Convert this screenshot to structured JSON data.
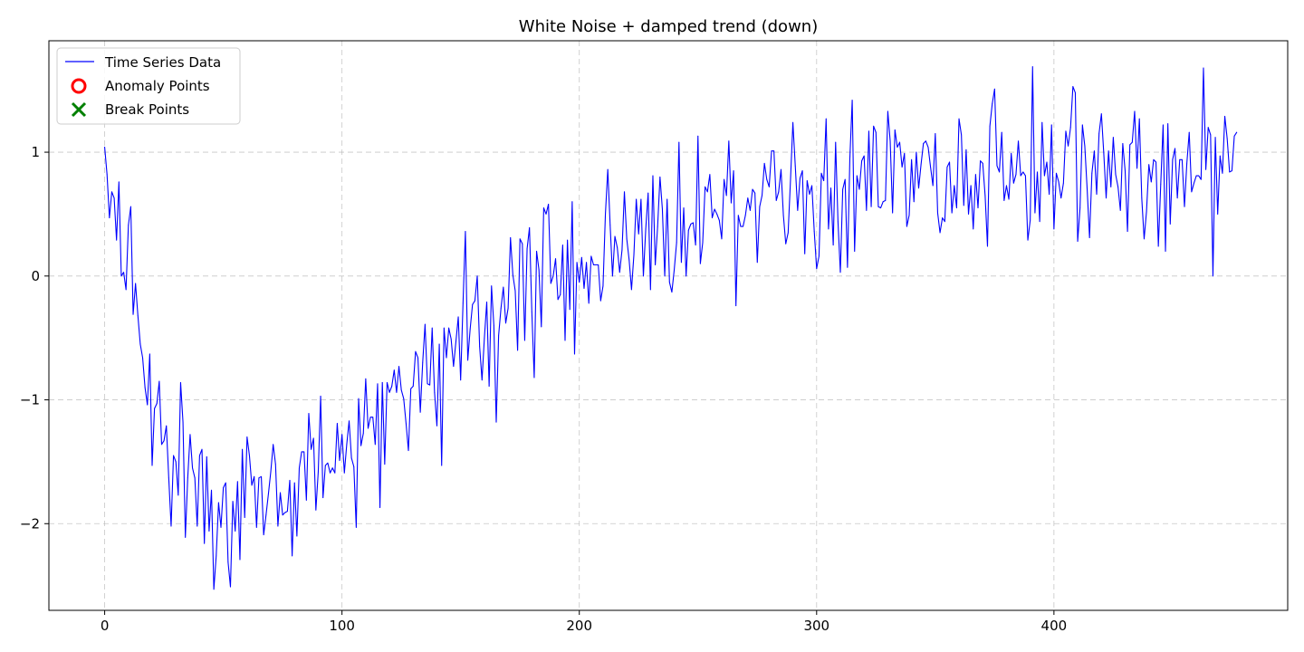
{
  "chart_data": {
    "type": "line",
    "title": "White Noise + damped trend (down)",
    "xlabel": "",
    "ylabel": "",
    "xlim": [
      -23.5,
      498.5
    ],
    "ylim": [
      -2.7,
      1.9
    ],
    "grid": true,
    "legend_position": "top-left",
    "x_ticks": [
      0,
      100,
      200,
      300,
      400
    ],
    "y_ticks": [
      -2,
      -1,
      0,
      1
    ],
    "x_tick_labels": [
      "0",
      "100",
      "200",
      "300",
      "400"
    ],
    "y_tick_labels": [
      "−2",
      "−1",
      "0",
      "1"
    ],
    "legend": [
      {
        "label": "Time Series Data",
        "kind": "line",
        "color": "#0000ff"
      },
      {
        "label": "Anomaly Points",
        "kind": "circle",
        "color": "#ff0000"
      },
      {
        "label": "Break Points",
        "kind": "x",
        "color": "#008000"
      }
    ],
    "series": [
      {
        "name": "Time Series Data",
        "color": "#0000ff",
        "x_start": 0,
        "x_step": 1,
        "values": [
          1.04,
          0.82,
          0.47,
          0.68,
          0.63,
          0.29,
          0.76,
          0.0,
          0.03,
          -0.11,
          0.41,
          0.56,
          -0.31,
          -0.06,
          -0.32,
          -0.55,
          -0.66,
          -0.9,
          -1.04,
          -0.63,
          -1.53,
          -1.07,
          -1.03,
          -0.85,
          -1.36,
          -1.33,
          -1.21,
          -1.63,
          -2.02,
          -1.45,
          -1.5,
          -1.77,
          -0.86,
          -1.18,
          -2.11,
          -1.63,
          -1.28,
          -1.55,
          -1.63,
          -2.02,
          -1.45,
          -1.4,
          -2.16,
          -1.46,
          -2.06,
          -1.73,
          -2.53,
          -2.26,
          -1.83,
          -2.03,
          -1.71,
          -1.67,
          -2.31,
          -2.51,
          -1.82,
          -2.06,
          -1.66,
          -2.29,
          -1.4,
          -1.95,
          -1.3,
          -1.45,
          -1.69,
          -1.62,
          -2.03,
          -1.63,
          -1.62,
          -2.09,
          -1.93,
          -1.76,
          -1.58,
          -1.36,
          -1.52,
          -2.02,
          -1.75,
          -1.93,
          -1.91,
          -1.9,
          -1.65,
          -2.26,
          -1.67,
          -2.1,
          -1.55,
          -1.42,
          -1.42,
          -1.81,
          -1.11,
          -1.4,
          -1.31,
          -1.89,
          -1.58,
          -0.97,
          -1.79,
          -1.53,
          -1.51,
          -1.59,
          -1.55,
          -1.59,
          -1.19,
          -1.49,
          -1.28,
          -1.59,
          -1.36,
          -1.17,
          -1.47,
          -1.54,
          -2.03,
          -0.99,
          -1.37,
          -1.27,
          -0.83,
          -1.23,
          -1.14,
          -1.14,
          -1.36,
          -0.87,
          -1.87,
          -0.86,
          -1.52,
          -0.86,
          -0.94,
          -0.89,
          -0.76,
          -0.94,
          -0.73,
          -0.92,
          -0.99,
          -1.19,
          -1.41,
          -0.91,
          -0.89,
          -0.61,
          -0.66,
          -1.1,
          -0.7,
          -0.39,
          -0.87,
          -0.88,
          -0.42,
          -0.94,
          -1.21,
          -0.55,
          -1.53,
          -0.42,
          -0.66,
          -0.42,
          -0.51,
          -0.73,
          -0.53,
          -0.33,
          -0.84,
          -0.22,
          0.36,
          -0.68,
          -0.43,
          -0.23,
          -0.2,
          0.0,
          -0.57,
          -0.84,
          -0.5,
          -0.21,
          -0.89,
          -0.08,
          -0.4,
          -1.18,
          -0.48,
          -0.26,
          -0.09,
          -0.38,
          -0.26,
          0.31,
          0.01,
          -0.12,
          -0.6,
          0.3,
          0.26,
          -0.52,
          0.22,
          0.39,
          -0.29,
          -0.82,
          0.2,
          0.05,
          -0.41,
          0.55,
          0.5,
          0.58,
          -0.06,
          0.0,
          0.14,
          -0.19,
          -0.15,
          0.25,
          -0.52,
          0.29,
          -0.27,
          0.6,
          -0.63,
          0.11,
          -0.05,
          0.15,
          -0.1,
          0.11,
          -0.22,
          0.16,
          0.09,
          0.09,
          0.09,
          -0.2,
          -0.08,
          0.5,
          0.86,
          0.41,
          0.0,
          0.32,
          0.23,
          0.03,
          0.21,
          0.68,
          0.3,
          0.13,
          -0.11,
          0.17,
          0.62,
          0.34,
          0.62,
          0.0,
          0.38,
          0.67,
          -0.11,
          0.81,
          0.09,
          0.4,
          0.8,
          0.54,
          0.0,
          0.62,
          -0.05,
          -0.13,
          0.05,
          0.27,
          1.08,
          0.11,
          0.55,
          0.0,
          0.37,
          0.42,
          0.43,
          0.25,
          1.13,
          0.1,
          0.27,
          0.72,
          0.68,
          0.82,
          0.47,
          0.54,
          0.5,
          0.45,
          0.3,
          0.78,
          0.65,
          1.09,
          0.59,
          0.85,
          -0.24,
          0.49,
          0.4,
          0.4,
          0.49,
          0.63,
          0.53,
          0.7,
          0.67,
          0.11,
          0.56,
          0.65,
          0.91,
          0.78,
          0.72,
          1.01,
          1.01,
          0.61,
          0.68,
          0.86,
          0.49,
          0.26,
          0.35,
          0.78,
          1.24,
          0.89,
          0.53,
          0.79,
          0.85,
          0.18,
          0.77,
          0.66,
          0.73,
          0.36,
          0.06,
          0.16,
          0.83,
          0.77,
          1.27,
          0.38,
          0.71,
          0.25,
          1.08,
          0.44,
          0.03,
          0.7,
          0.78,
          0.07,
          0.95,
          1.42,
          0.2,
          0.81,
          0.7,
          0.93,
          0.97,
          0.53,
          1.17,
          0.56,
          1.21,
          1.16,
          0.56,
          0.55,
          0.6,
          0.61,
          1.33,
          1.09,
          0.51,
          1.18,
          1.04,
          1.08,
          0.88,
          0.99,
          0.4,
          0.49,
          0.94,
          0.6,
          1.0,
          0.71,
          0.9,
          1.07,
          1.09,
          1.04,
          0.88,
          0.73,
          1.15,
          0.51,
          0.35,
          0.47,
          0.44,
          0.88,
          0.92,
          0.51,
          0.73,
          0.55,
          1.27,
          1.14,
          0.57,
          1.02,
          0.5,
          0.73,
          0.38,
          0.82,
          0.55,
          0.93,
          0.91,
          0.65,
          0.24,
          1.21,
          1.39,
          1.51,
          0.89,
          0.84,
          1.16,
          0.61,
          0.73,
          0.62,
          0.99,
          0.75,
          0.82,
          1.09,
          0.81,
          0.84,
          0.81,
          0.29,
          0.45,
          1.69,
          0.51,
          0.84,
          0.44,
          1.24,
          0.81,
          0.92,
          0.66,
          1.22,
          0.38,
          0.83,
          0.76,
          0.63,
          0.75,
          1.17,
          1.05,
          1.2,
          1.53,
          1.48,
          0.28,
          0.55,
          1.22,
          1.05,
          0.7,
          0.31,
          0.83,
          1.01,
          0.66,
          1.15,
          1.31,
          0.99,
          0.63,
          1.01,
          0.72,
          1.12,
          0.82,
          0.72,
          0.53,
          1.07,
          0.85,
          0.36,
          1.06,
          1.08,
          1.33,
          0.87,
          1.27,
          0.63,
          0.3,
          0.52,
          0.9,
          0.76,
          0.94,
          0.92,
          0.24,
          0.74,
          1.22,
          0.2,
          1.23,
          0.42,
          0.94,
          1.03,
          0.63,
          0.94,
          0.94,
          0.56,
          0.91,
          1.16,
          0.68,
          0.75,
          0.81,
          0.81,
          0.78,
          1.68,
          0.86,
          1.2,
          1.14,
          0.0,
          1.12,
          0.5,
          0.97,
          0.83,
          1.29,
          1.11,
          0.84,
          0.85,
          1.13,
          1.16
        ]
      }
    ]
  }
}
